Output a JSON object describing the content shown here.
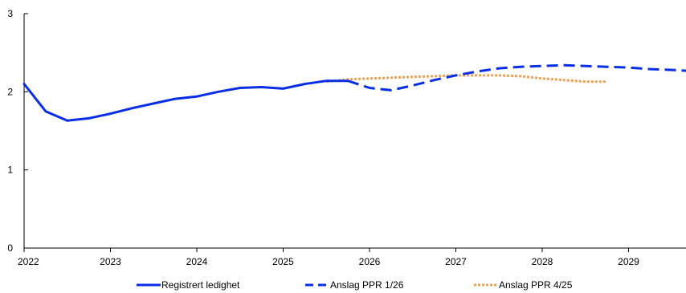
{
  "chart_data": {
    "type": "line",
    "title": "",
    "xlabel": "",
    "ylabel": "",
    "xlim": [
      2022,
      2029.67
    ],
    "ylim": [
      0,
      3
    ],
    "x_ticks": [
      "2022",
      "2023",
      "2024",
      "2025",
      "2026",
      "2027",
      "2028",
      "2029"
    ],
    "y_ticks": [
      "0",
      "1",
      "2",
      "3"
    ],
    "grid": false,
    "legend_position": "bottom",
    "series": [
      {
        "name": "Registrert ledighet",
        "color": "#0a2ee6",
        "style": "solid",
        "points": [
          [
            2022.0,
            2.1
          ],
          [
            2022.25,
            1.75
          ],
          [
            2022.5,
            1.63
          ],
          [
            2022.75,
            1.66
          ],
          [
            2023.0,
            1.72
          ],
          [
            2023.25,
            1.79
          ],
          [
            2023.5,
            1.85
          ],
          [
            2023.75,
            1.91
          ],
          [
            2024.0,
            1.94
          ],
          [
            2024.25,
            2.0
          ],
          [
            2024.5,
            2.05
          ],
          [
            2024.75,
            2.06
          ],
          [
            2025.0,
            2.04
          ],
          [
            2025.25,
            2.1
          ],
          [
            2025.5,
            2.14
          ],
          [
            2025.75,
            2.14
          ]
        ]
      },
      {
        "name": "Anslag PPR 1/26",
        "color": "#0a2ee6",
        "style": "dashed",
        "points": [
          [
            2025.75,
            2.14
          ],
          [
            2026.0,
            2.05
          ],
          [
            2026.25,
            2.02
          ],
          [
            2026.5,
            2.08
          ],
          [
            2026.75,
            2.15
          ],
          [
            2027.0,
            2.21
          ],
          [
            2027.25,
            2.26
          ],
          [
            2027.5,
            2.3
          ],
          [
            2027.75,
            2.32
          ],
          [
            2028.0,
            2.33
          ],
          [
            2028.25,
            2.34
          ],
          [
            2028.5,
            2.33
          ],
          [
            2028.75,
            2.32
          ],
          [
            2029.0,
            2.31
          ],
          [
            2029.25,
            2.29
          ],
          [
            2029.5,
            2.28
          ],
          [
            2029.67,
            2.27
          ]
        ]
      },
      {
        "name": "Anslag PPR 4/25",
        "color": "#f0a055",
        "style": "dotted",
        "points": [
          [
            2025.5,
            2.13
          ],
          [
            2025.75,
            2.16
          ],
          [
            2026.0,
            2.17
          ],
          [
            2026.25,
            2.18
          ],
          [
            2026.5,
            2.19
          ],
          [
            2026.75,
            2.2
          ],
          [
            2027.0,
            2.21
          ],
          [
            2027.25,
            2.21
          ],
          [
            2027.5,
            2.21
          ],
          [
            2027.75,
            2.2
          ],
          [
            2028.0,
            2.17
          ],
          [
            2028.25,
            2.15
          ],
          [
            2028.5,
            2.13
          ],
          [
            2028.75,
            2.13
          ]
        ]
      }
    ]
  }
}
